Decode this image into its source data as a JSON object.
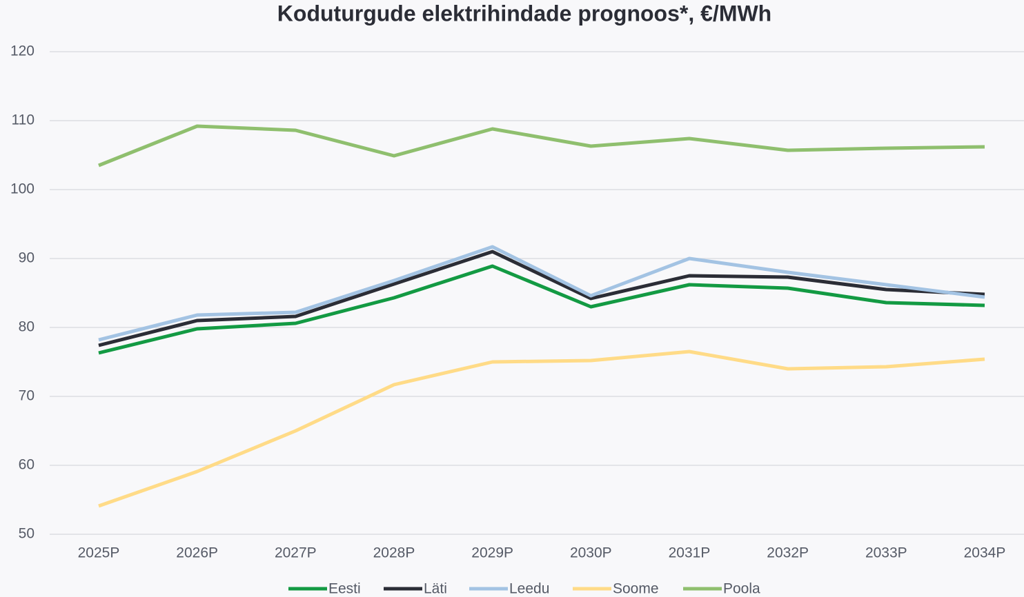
{
  "chart_data": {
    "type": "line",
    "title": "Koduturgude elektrihindade prognoos*, €/MWh",
    "categories": [
      "2025P",
      "2026P",
      "2027P",
      "2028P",
      "2029P",
      "2030P",
      "2031P",
      "2032P",
      "2033P",
      "2034P"
    ],
    "series": [
      {
        "name": "Eesti",
        "color": "#139a43",
        "values": [
          76.3,
          79.8,
          80.6,
          84.3,
          88.9,
          83.0,
          86.2,
          85.7,
          83.6,
          83.2
        ]
      },
      {
        "name": "Läti",
        "color": "#2b2d36",
        "values": [
          77.4,
          81.0,
          81.6,
          86.3,
          91.0,
          84.2,
          87.5,
          87.3,
          85.5,
          84.8
        ]
      },
      {
        "name": "Leedu",
        "color": "#a3c3e3",
        "values": [
          78.2,
          81.8,
          82.2,
          86.8,
          91.7,
          84.6,
          90.0,
          88.0,
          86.2,
          84.4
        ]
      },
      {
        "name": "Soome",
        "color": "#ffdb87",
        "values": [
          54.1,
          59.1,
          65.0,
          71.7,
          75.0,
          75.2,
          76.5,
          74.0,
          74.3,
          75.4
        ]
      },
      {
        "name": "Poola",
        "color": "#8fbf6e",
        "values": [
          103.5,
          109.2,
          108.6,
          104.9,
          108.8,
          106.3,
          107.4,
          105.7,
          106.0,
          106.2
        ]
      }
    ],
    "ylim": [
      50,
      120
    ],
    "yticks": [
      50,
      60,
      70,
      80,
      90,
      100,
      110,
      120
    ],
    "grid": true,
    "legend": "bottom"
  }
}
